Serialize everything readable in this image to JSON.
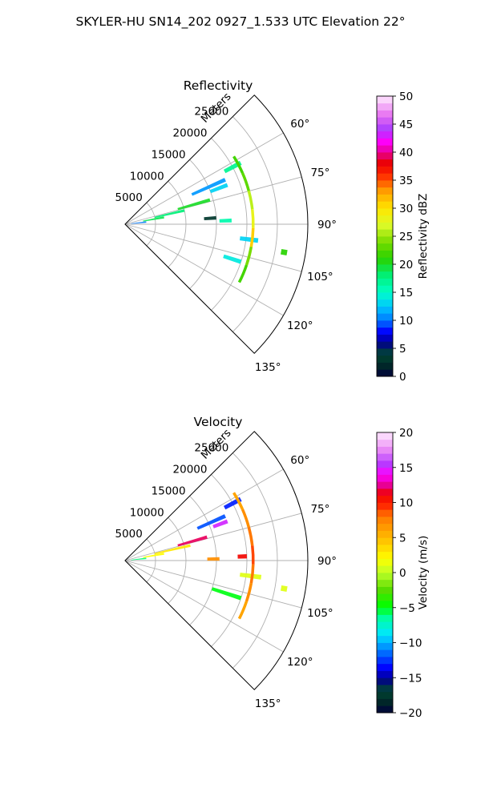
{
  "suptitle": "SKYLER-HU  SN14_202  0927_1.533 UTC Elevation 22°",
  "chart_data": [
    {
      "type": "polar-sector",
      "title": "Reflectivity",
      "radial_label": "Meters",
      "radial_ticks": [
        5000,
        10000,
        15000,
        20000,
        25000
      ],
      "radial_tick_labels": [
        "5000",
        "10000",
        "15000",
        "20000",
        "25000"
      ],
      "angle_ticks": [
        60,
        75,
        90,
        105,
        120,
        135
      ],
      "angle_tick_labels": [
        "60°",
        "75°",
        "90°",
        "105°",
        "120°",
        "135°"
      ],
      "angle_range": [
        45,
        135
      ],
      "radial_range": [
        0,
        30000
      ],
      "grid": true,
      "colorbar": {
        "label": "Reflectivity dBZ",
        "range": [
          0,
          50
        ],
        "ticks": [
          0,
          5,
          10,
          15,
          20,
          25,
          30,
          35,
          40,
          45,
          50
        ],
        "tick_labels": [
          "0",
          "5",
          "10",
          "15",
          "20",
          "25",
          "30",
          "35",
          "40",
          "45",
          "50"
        ]
      },
      "echoes": [
        {
          "theta": 62,
          "r0": 18500,
          "r1": 21500,
          "value": 17
        },
        {
          "theta": 66,
          "r0": 12000,
          "r1": 18000,
          "value": 11
        },
        {
          "theta": 69,
          "r0": 15000,
          "r1": 18000,
          "value": 13
        },
        {
          "theta": 74,
          "r0": 9000,
          "r1": 14500,
          "value": 20
        },
        {
          "theta": 77,
          "r0": 5000,
          "r1": 10000,
          "value": 18
        },
        {
          "theta": 80,
          "r0": 3000,
          "r1": 6500,
          "value": 19
        },
        {
          "theta": 84,
          "r0": 1000,
          "r1": 3500,
          "value": 10
        },
        {
          "theta": 86,
          "r0": 13000,
          "r1": 15000,
          "value": 3
        },
        {
          "theta": 88,
          "r0": 15500,
          "r1": 17500,
          "value": 16
        },
        {
          "theta": 97,
          "r0": 19000,
          "r1": 22000,
          "value": 13
        },
        {
          "theta": 108,
          "r0": 17000,
          "r1": 20000,
          "value": 14
        },
        {
          "theta": 100,
          "r0": 26000,
          "r1": 27000,
          "value": 21
        }
      ],
      "arc_echo": {
        "range": 21000,
        "theta0": 58,
        "theta1": 117,
        "values": [
          22,
          23,
          26,
          28,
          31,
          24,
          22
        ]
      }
    },
    {
      "type": "polar-sector",
      "title": "Velocity",
      "radial_label": "Meters",
      "radial_ticks": [
        5000,
        10000,
        15000,
        20000,
        25000
      ],
      "radial_tick_labels": [
        "5000",
        "10000",
        "15000",
        "20000",
        "25000"
      ],
      "angle_ticks": [
        60,
        75,
        90,
        105,
        120,
        135
      ],
      "angle_tick_labels": [
        "60°",
        "75°",
        "90°",
        "105°",
        "120°",
        "135°"
      ],
      "angle_range": [
        45,
        135
      ],
      "radial_range": [
        0,
        30000
      ],
      "grid": true,
      "colorbar": {
        "label": "Velocity (m/s)",
        "range": [
          -20,
          20
        ],
        "ticks": [
          -20,
          -15,
          -10,
          -5,
          0,
          5,
          10,
          15,
          20
        ],
        "tick_labels": [
          "−20",
          "−15",
          "−10",
          "−5",
          "0",
          "5",
          "10",
          "15",
          "20"
        ]
      },
      "echoes": [
        {
          "theta": 62,
          "r0": 18500,
          "r1": 21500,
          "value": -13
        },
        {
          "theta": 66,
          "r0": 13000,
          "r1": 18000,
          "value": -12
        },
        {
          "theta": 69,
          "r0": 15500,
          "r1": 18000,
          "value": 15
        },
        {
          "theta": 74,
          "r0": 9000,
          "r1": 14000,
          "value": 12
        },
        {
          "theta": 77,
          "r0": 5000,
          "r1": 11000,
          "value": 3
        },
        {
          "theta": 80,
          "r0": 3000,
          "r1": 6500,
          "value": 2
        },
        {
          "theta": 84,
          "r0": 1000,
          "r1": 3500,
          "value": -6
        },
        {
          "theta": 89,
          "r0": 13500,
          "r1": 15500,
          "value": 7
        },
        {
          "theta": 88,
          "r0": 18500,
          "r1": 20000,
          "value": 11
        },
        {
          "theta": 97,
          "r0": 19000,
          "r1": 22500,
          "value": 1
        },
        {
          "theta": 108,
          "r0": 15000,
          "r1": 20000,
          "value": -5
        },
        {
          "theta": 100,
          "r0": 26000,
          "r1": 27000,
          "value": 1
        }
      ],
      "arc_echo": {
        "range": 21000,
        "theta0": 58,
        "theta1": 117,
        "values": [
          6,
          7,
          8,
          9,
          8,
          7,
          6
        ]
      }
    }
  ]
}
